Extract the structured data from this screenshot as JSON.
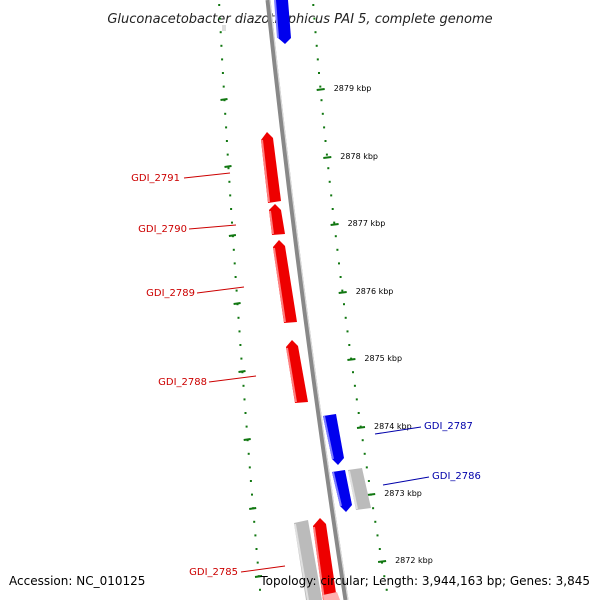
{
  "title": "Gluconacetobacter diazotrophicus PAI 5, complete genome",
  "footer": {
    "accession": "Accession: NC_010125",
    "topology": "Topology: circular; Length: 3,944,163 bp; Genes: 3,845"
  },
  "colors": {
    "forward_strand": "#0000ee",
    "reverse_strand": "#ee0000",
    "other_feature": "#bbbbbb",
    "backbone": "#888888",
    "ticks": "#117711",
    "label_red": "#cc0000",
    "label_blue": "#0000aa"
  },
  "ticks": [
    "2879 kbp",
    "2878 kbp",
    "2877 kbp",
    "2876 kbp",
    "2875 kbp",
    "2874 kbp",
    "2873 kbp",
    "2872 kbp"
  ],
  "gene_labels": [
    {
      "name": "GDI_2791",
      "color": "red"
    },
    {
      "name": "GDI_2790",
      "color": "red"
    },
    {
      "name": "GDI_2789",
      "color": "red"
    },
    {
      "name": "GDI_2788",
      "color": "red"
    },
    {
      "name": "GDI_2787",
      "color": "blue"
    },
    {
      "name": "GDI_2786",
      "color": "blue"
    },
    {
      "name": "GDI_2785",
      "color": "red"
    }
  ]
}
